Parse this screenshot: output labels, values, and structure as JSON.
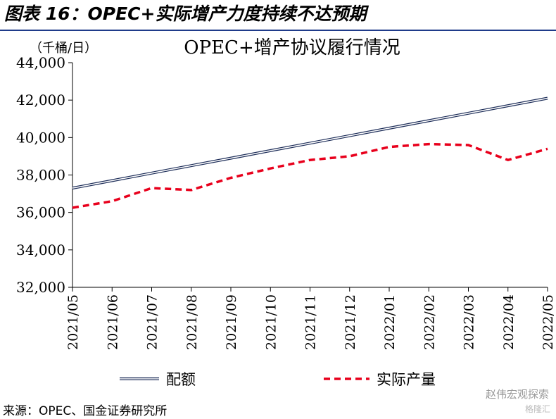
{
  "figure_title": "图表 16：OPEC+实际增产力度持续不达预期",
  "source_note": "来源：OPEC、国金证券研究所",
  "watermark": "赵伟宏观探索",
  "watermark_sub": "格隆汇",
  "chart_data": {
    "type": "line",
    "title": "OPEC+增产协议履行情况",
    "unit_label": "（千桶/日）",
    "x": [
      "2021/05",
      "2021/06",
      "2021/07",
      "2021/08",
      "2021/09",
      "2021/10",
      "2021/11",
      "2021/12",
      "2022/01",
      "2022/02",
      "2022/03",
      "2022/04",
      "2022/05"
    ],
    "ylim": [
      32000,
      44000
    ],
    "yticks": [
      32000,
      34000,
      36000,
      38000,
      40000,
      42000,
      44000
    ],
    "ytick_labels": [
      "32,000",
      "34,000",
      "36,000",
      "38,000",
      "40,000",
      "42,000",
      "44,000"
    ],
    "grid": false,
    "legend_position": "bottom",
    "series": [
      {
        "name": "配额",
        "style": "double-line",
        "color": "#1f2f5a",
        "values": [
          37300,
          37700,
          38100,
          38500,
          38900,
          39300,
          39700,
          40100,
          40500,
          40900,
          41300,
          41700,
          42100
        ]
      },
      {
        "name": "实际产量",
        "style": "dashed",
        "color": "#e8001c",
        "values": [
          36250,
          36600,
          37300,
          37200,
          37850,
          38350,
          38800,
          39000,
          39500,
          39650,
          39600,
          38800,
          39400
        ]
      }
    ]
  }
}
